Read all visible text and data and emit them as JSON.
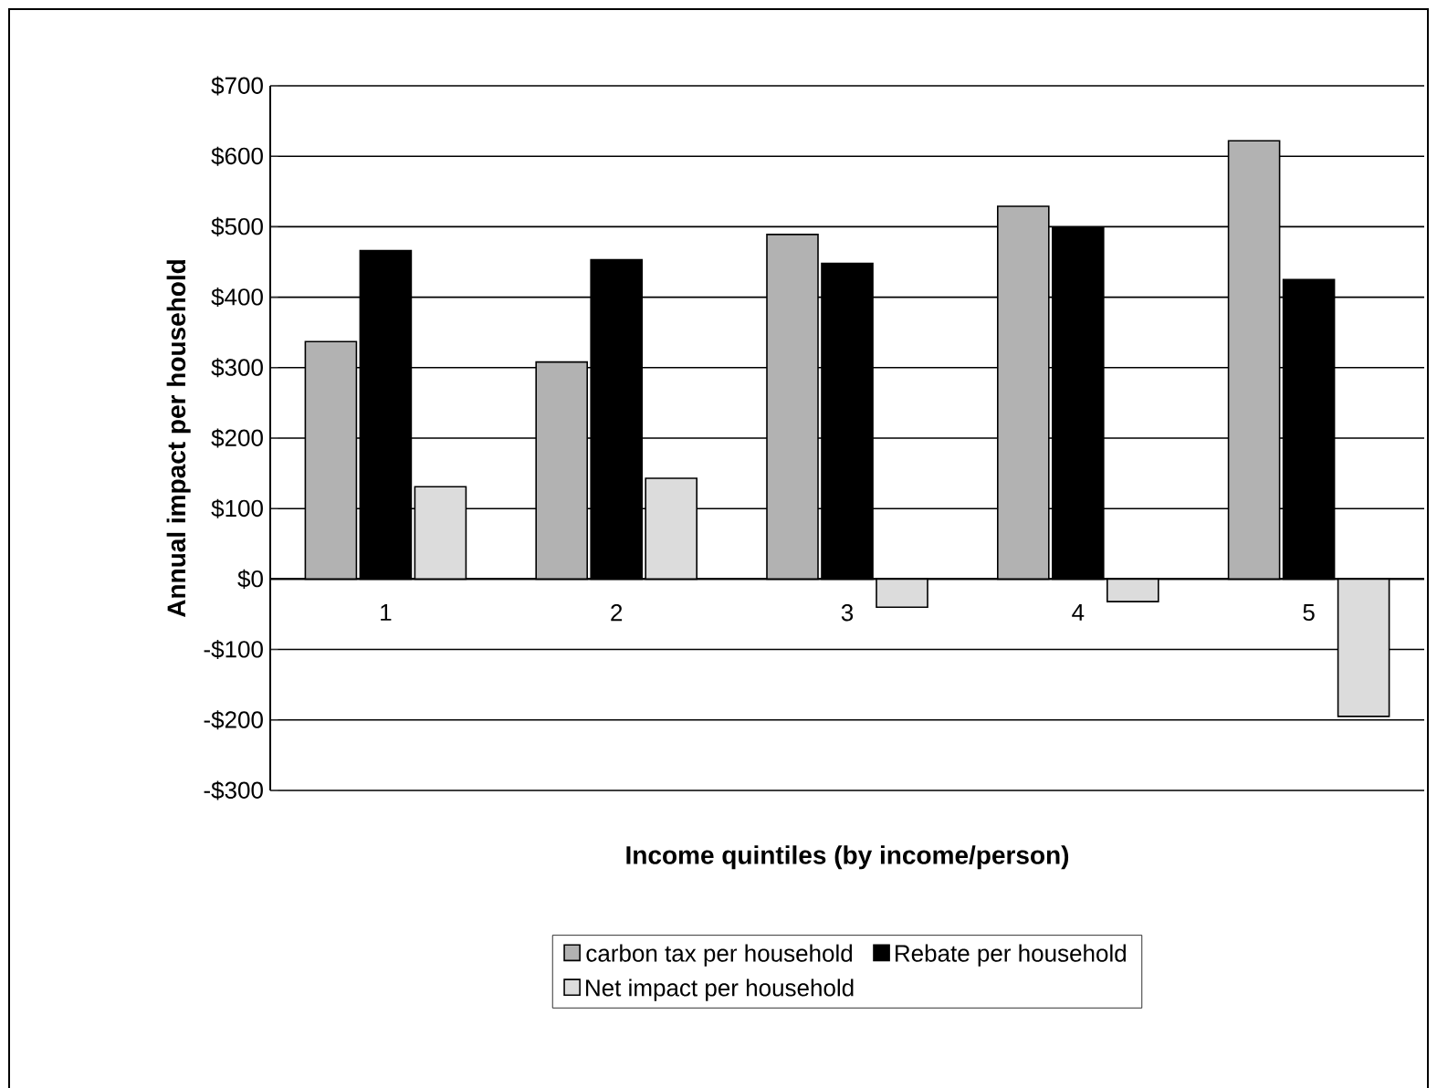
{
  "chart_data": {
    "type": "bar",
    "xlabel": "Income quintiles (by income/person)",
    "ylabel": "Annual impact per household",
    "categories": [
      "1",
      "2",
      "3",
      "4",
      "5"
    ],
    "series": [
      {
        "name": "carbon tax per household",
        "color": "#b2b2b2",
        "values": [
          337,
          308,
          489,
          529,
          622
        ]
      },
      {
        "name": "Rebate per household",
        "color": "#000000",
        "values": [
          466,
          453,
          448,
          499,
          425
        ]
      },
      {
        "name": "Net impact per household",
        "color": "#dcdcdc",
        "values": [
          131,
          143,
          -40,
          -32,
          -195
        ]
      }
    ],
    "ylim": [
      -300,
      700
    ],
    "yticks": [
      {
        "value": -300,
        "label": "-$300"
      },
      {
        "value": -200,
        "label": "-$200"
      },
      {
        "value": -100,
        "label": "-$100"
      },
      {
        "value": 0,
        "label": "$0"
      },
      {
        "value": 100,
        "label": "$100"
      },
      {
        "value": 200,
        "label": "$200"
      },
      {
        "value": 300,
        "label": "$300"
      },
      {
        "value": 400,
        "label": "$400"
      },
      {
        "value": 500,
        "label": "$500"
      },
      {
        "value": 600,
        "label": "$600"
      },
      {
        "value": 700,
        "label": "$700"
      }
    ],
    "grid": "y",
    "legend": "bottom"
  }
}
